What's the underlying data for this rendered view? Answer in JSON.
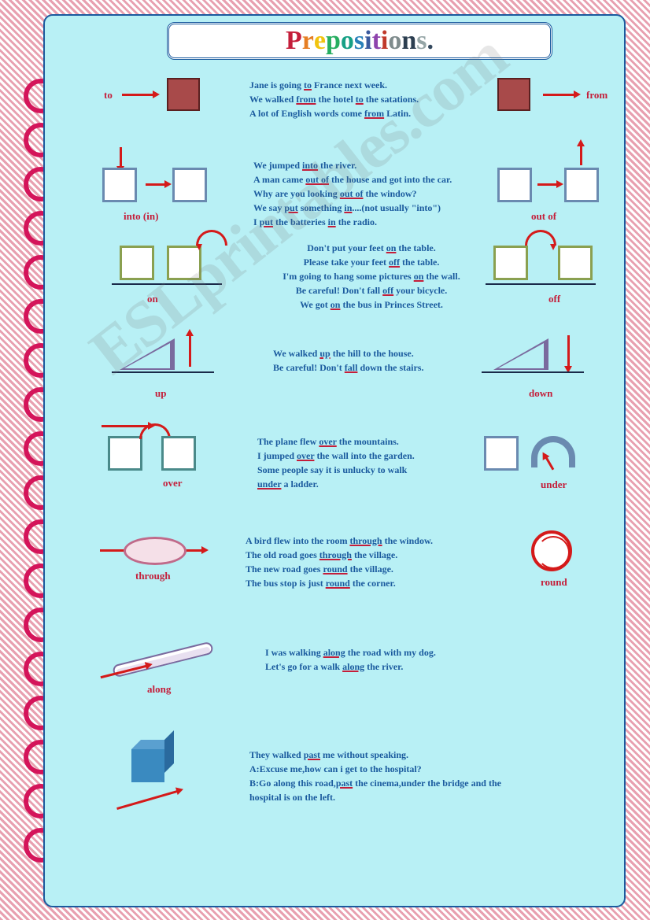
{
  "title": "Prepositions.",
  "title_colors": [
    "#c41e3a",
    "#e67e22",
    "#f1c40f",
    "#27ae60",
    "#16a085",
    "#2980b9",
    "#3a5a9e",
    "#8e44ad",
    "#c0392b",
    "#7f8c8d",
    "#2c3e50",
    "#95a5a6",
    "#34495e"
  ],
  "watermark": "ESLprintables.com",
  "sections": {
    "to_from": {
      "left_label": "to",
      "right_label": "from",
      "lines": [
        "Jane is going <u>to</u> France next week.",
        "We walked <u>from</u> the hotel <u>to</u> the satations.",
        "A lot of English words come <u>from</u> Latin."
      ]
    },
    "into_outof": {
      "left_label": "into (in)",
      "right_label": "out of",
      "lines": [
        "We jumped <u>into</u> the river.",
        "A man came <u>out of</u> the house and got into the car.",
        "Why are you looking <u>out of</u> the window?",
        "We say <u>put</u> something <u>in</u>....(not usually \"into\")",
        "I <u>put</u> the batteries <u>in</u> the radio."
      ]
    },
    "on_off": {
      "left_label": "on",
      "right_label": "off",
      "lines": [
        "Don't put your feet <u>on</u> the table.",
        "Please take your feet <u>off</u> the table.",
        "I'm going to hang some pictures <u>on</u> the wall.",
        "Be careful! Don't fall <u>off</u> your bicycle.",
        "We got <u>on</u> the bus in Princes Street."
      ]
    },
    "up_down": {
      "left_label": "up",
      "right_label": "down",
      "lines": [
        "We walked <u>up</u> the hill to the house.",
        "Be careful! Don't <u>fall</u> down the stairs."
      ]
    },
    "over_under": {
      "left_label": "over",
      "right_label": "under",
      "lines": [
        "The plane flew <u>over</u> the mountains.",
        "I jumped <u>over</u> the wall into the garden.",
        "Some people say it is unlucky to walk",
        "<u>under</u> a ladder."
      ]
    },
    "through_round": {
      "left_label": "through",
      "right_label": "round",
      "lines": [
        "A bird flew into the room <u>through</u> the window.",
        "The old road goes <u>through</u> the village.",
        "The new road goes <u>round</u> the village.",
        "The bus stop is just <u>round</u> the corner."
      ]
    },
    "along": {
      "label": "along",
      "lines": [
        "I was walking <u>along</u>  the road with my dog.",
        "Let's go for a walk <u>along</u> the river."
      ]
    },
    "past": {
      "lines": [
        "They walked <u>past</u> me without speaking.",
        "A:Excuse me,how can i get to the hospital?",
        "B:Go along this road,<u>past</u> the cinema,under the bridge and the",
        "hospital is on the left."
      ]
    }
  }
}
